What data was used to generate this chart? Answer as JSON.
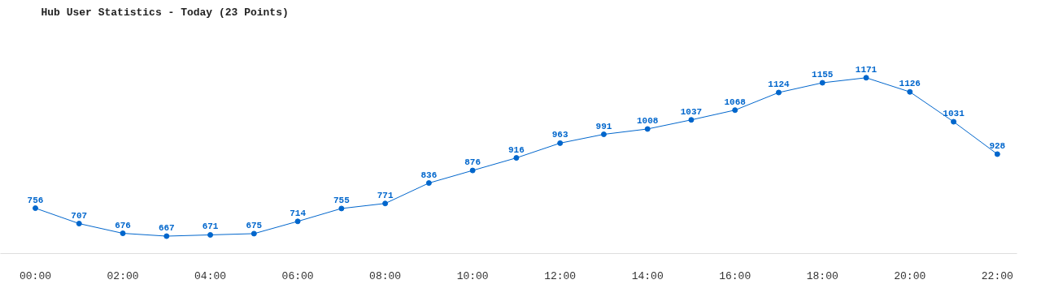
{
  "chart_data": {
    "type": "line",
    "title": "Hub User Statistics - Today (23 Points)",
    "x": [
      0,
      1,
      2,
      3,
      4,
      5,
      6,
      7,
      8,
      9,
      10,
      11,
      12,
      13,
      14,
      15,
      16,
      17,
      18,
      19,
      20,
      21,
      22
    ],
    "values": [
      756,
      707,
      676,
      667,
      671,
      675,
      714,
      755,
      771,
      836,
      876,
      916,
      963,
      991,
      1008,
      1037,
      1068,
      1124,
      1155,
      1171,
      1126,
      1031,
      928
    ],
    "color": "#0066cc",
    "marker": "circle",
    "line_style": "solid",
    "data_labels": true,
    "grid": false,
    "tick_labels": "x",
    "xlim": [
      -0.8,
      22.45
    ],
    "xticks": [
      {
        "value": 0,
        "label": "00:00"
      },
      {
        "value": 2,
        "label": "02:00"
      },
      {
        "value": 4,
        "label": "04:00"
      },
      {
        "value": 6,
        "label": "06:00"
      },
      {
        "value": 8,
        "label": "08:00"
      },
      {
        "value": 10,
        "label": "10:00"
      },
      {
        "value": 12,
        "label": "12:00"
      },
      {
        "value": 14,
        "label": "14:00"
      },
      {
        "value": 16,
        "label": "16:00"
      },
      {
        "value": 18,
        "label": "18:00"
      },
      {
        "value": 20,
        "label": "20:00"
      },
      {
        "value": 22,
        "label": "22:00"
      }
    ]
  }
}
